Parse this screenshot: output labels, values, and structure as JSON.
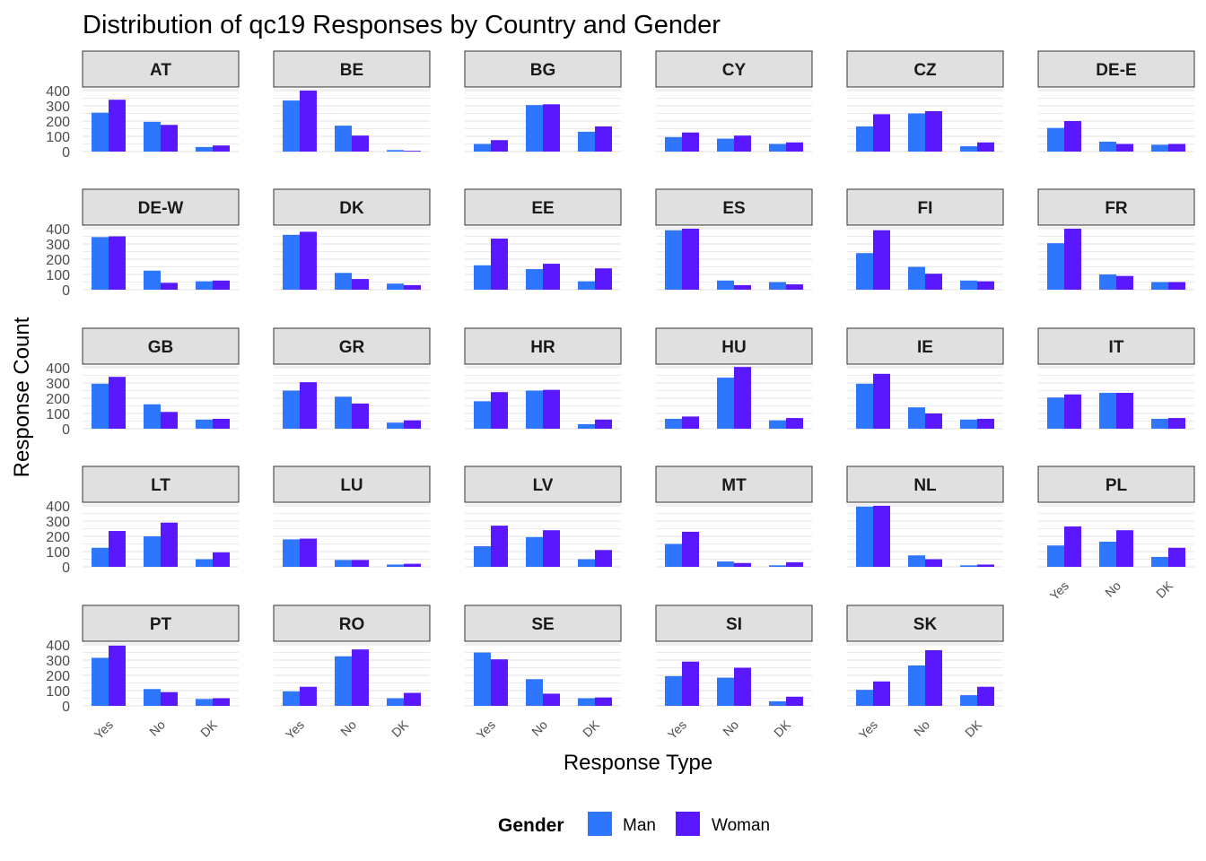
{
  "chart_data": {
    "type": "bar",
    "title": "Distribution of qc19 Responses by Country and Gender",
    "xlabel": "Response Type",
    "ylabel": "Response Count",
    "categories": [
      "Yes",
      "No",
      "DK"
    ],
    "yticks": [
      0,
      100,
      200,
      300,
      400
    ],
    "ylim": [
      0,
      410
    ],
    "grid": true,
    "legend": {
      "title": "Gender",
      "position": "bottom",
      "entries": [
        {
          "name": "Man",
          "color": "#2f76ff"
        },
        {
          "name": "Woman",
          "color": "#5a18ff"
        }
      ]
    },
    "facets": [
      {
        "label": "AT",
        "man": [
          255,
          195,
          30
        ],
        "woman": [
          340,
          175,
          40
        ]
      },
      {
        "label": "BE",
        "man": [
          335,
          170,
          10
        ],
        "woman": [
          400,
          105,
          5
        ]
      },
      {
        "label": "BG",
        "man": [
          50,
          305,
          130
        ],
        "woman": [
          75,
          310,
          165
        ]
      },
      {
        "label": "CY",
        "man": [
          95,
          85,
          50
        ],
        "woman": [
          125,
          105,
          60
        ]
      },
      {
        "label": "CZ",
        "man": [
          165,
          250,
          35
        ],
        "woman": [
          245,
          265,
          60
        ]
      },
      {
        "label": "DE-E",
        "man": [
          155,
          65,
          45
        ],
        "woman": [
          200,
          50,
          50
        ]
      },
      {
        "label": "DE-W",
        "man": [
          345,
          125,
          55
        ],
        "woman": [
          350,
          45,
          60
        ]
      },
      {
        "label": "DK",
        "man": [
          360,
          110,
          40
        ],
        "woman": [
          380,
          70,
          30
        ]
      },
      {
        "label": "EE",
        "man": [
          160,
          135,
          55
        ],
        "woman": [
          335,
          170,
          140
        ]
      },
      {
        "label": "ES",
        "man": [
          390,
          60,
          50
        ],
        "woman": [
          400,
          30,
          35
        ]
      },
      {
        "label": "FI",
        "man": [
          240,
          150,
          60
        ],
        "woman": [
          390,
          105,
          55
        ]
      },
      {
        "label": "FR",
        "man": [
          305,
          100,
          50
        ],
        "woman": [
          400,
          90,
          50
        ]
      },
      {
        "label": "GB",
        "man": [
          295,
          160,
          60
        ],
        "woman": [
          340,
          110,
          65
        ]
      },
      {
        "label": "GR",
        "man": [
          250,
          210,
          40
        ],
        "woman": [
          305,
          165,
          55
        ]
      },
      {
        "label": "HR",
        "man": [
          180,
          250,
          30
        ],
        "woman": [
          240,
          255,
          60
        ]
      },
      {
        "label": "HU",
        "man": [
          65,
          335,
          55
        ],
        "woman": [
          80,
          405,
          70
        ]
      },
      {
        "label": "IE",
        "man": [
          295,
          140,
          60
        ],
        "woman": [
          360,
          100,
          65
        ]
      },
      {
        "label": "IT",
        "man": [
          205,
          235,
          65
        ],
        "woman": [
          225,
          235,
          70
        ]
      },
      {
        "label": "LT",
        "man": [
          125,
          200,
          50
        ],
        "woman": [
          235,
          290,
          95
        ]
      },
      {
        "label": "LU",
        "man": [
          180,
          45,
          15
        ],
        "woman": [
          185,
          45,
          20
        ]
      },
      {
        "label": "LV",
        "man": [
          135,
          195,
          50
        ],
        "woman": [
          270,
          240,
          110
        ]
      },
      {
        "label": "MT",
        "man": [
          150,
          35,
          10
        ],
        "woman": [
          230,
          25,
          30
        ]
      },
      {
        "label": "NL",
        "man": [
          395,
          75,
          10
        ],
        "woman": [
          400,
          50,
          15
        ]
      },
      {
        "label": "PL",
        "man": [
          140,
          165,
          65
        ],
        "woman": [
          265,
          240,
          125
        ]
      },
      {
        "label": "PT",
        "man": [
          315,
          110,
          45
        ],
        "woman": [
          395,
          90,
          50
        ]
      },
      {
        "label": "RO",
        "man": [
          95,
          325,
          50
        ],
        "woman": [
          125,
          370,
          85
        ]
      },
      {
        "label": "SE",
        "man": [
          350,
          175,
          50
        ],
        "woman": [
          305,
          80,
          55
        ]
      },
      {
        "label": "SI",
        "man": [
          195,
          185,
          30
        ],
        "woman": [
          290,
          250,
          60
        ]
      },
      {
        "label": "SK",
        "man": [
          105,
          265,
          70
        ],
        "woman": [
          160,
          365,
          125
        ]
      }
    ]
  }
}
